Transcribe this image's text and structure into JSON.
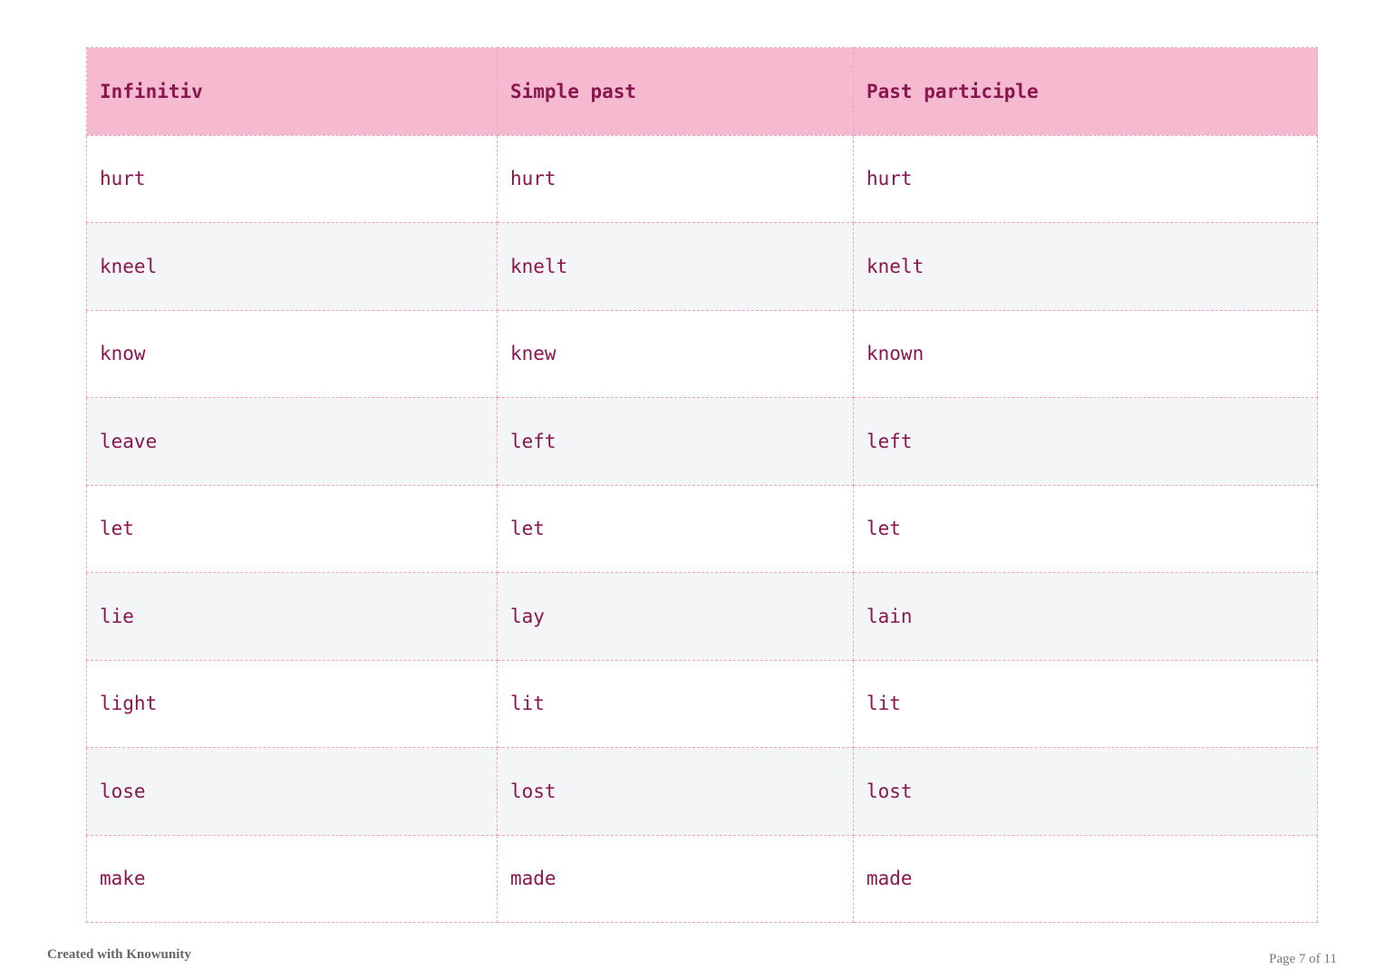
{
  "table": {
    "headers": [
      "Infinitiv",
      "Simple past",
      "Past participle"
    ],
    "rows": [
      [
        "hurt",
        "hurt",
        "hurt"
      ],
      [
        "kneel",
        "knelt",
        "knelt"
      ],
      [
        "know",
        "knew",
        "known"
      ],
      [
        "leave",
        "left",
        "left"
      ],
      [
        "let",
        "let",
        "let"
      ],
      [
        "lie",
        "lay",
        "lain"
      ],
      [
        "light",
        "lit",
        "lit"
      ],
      [
        "lose",
        "lost",
        "lost"
      ],
      [
        "make",
        "made",
        "made"
      ]
    ]
  },
  "footer": {
    "credit": "Created with Knowunity",
    "page": "Page 7 of 11"
  },
  "colors": {
    "header_bg": "#f6bad0",
    "text": "#8a1650",
    "border": "#f3a3c0",
    "stripe": "#f4f5f7"
  }
}
